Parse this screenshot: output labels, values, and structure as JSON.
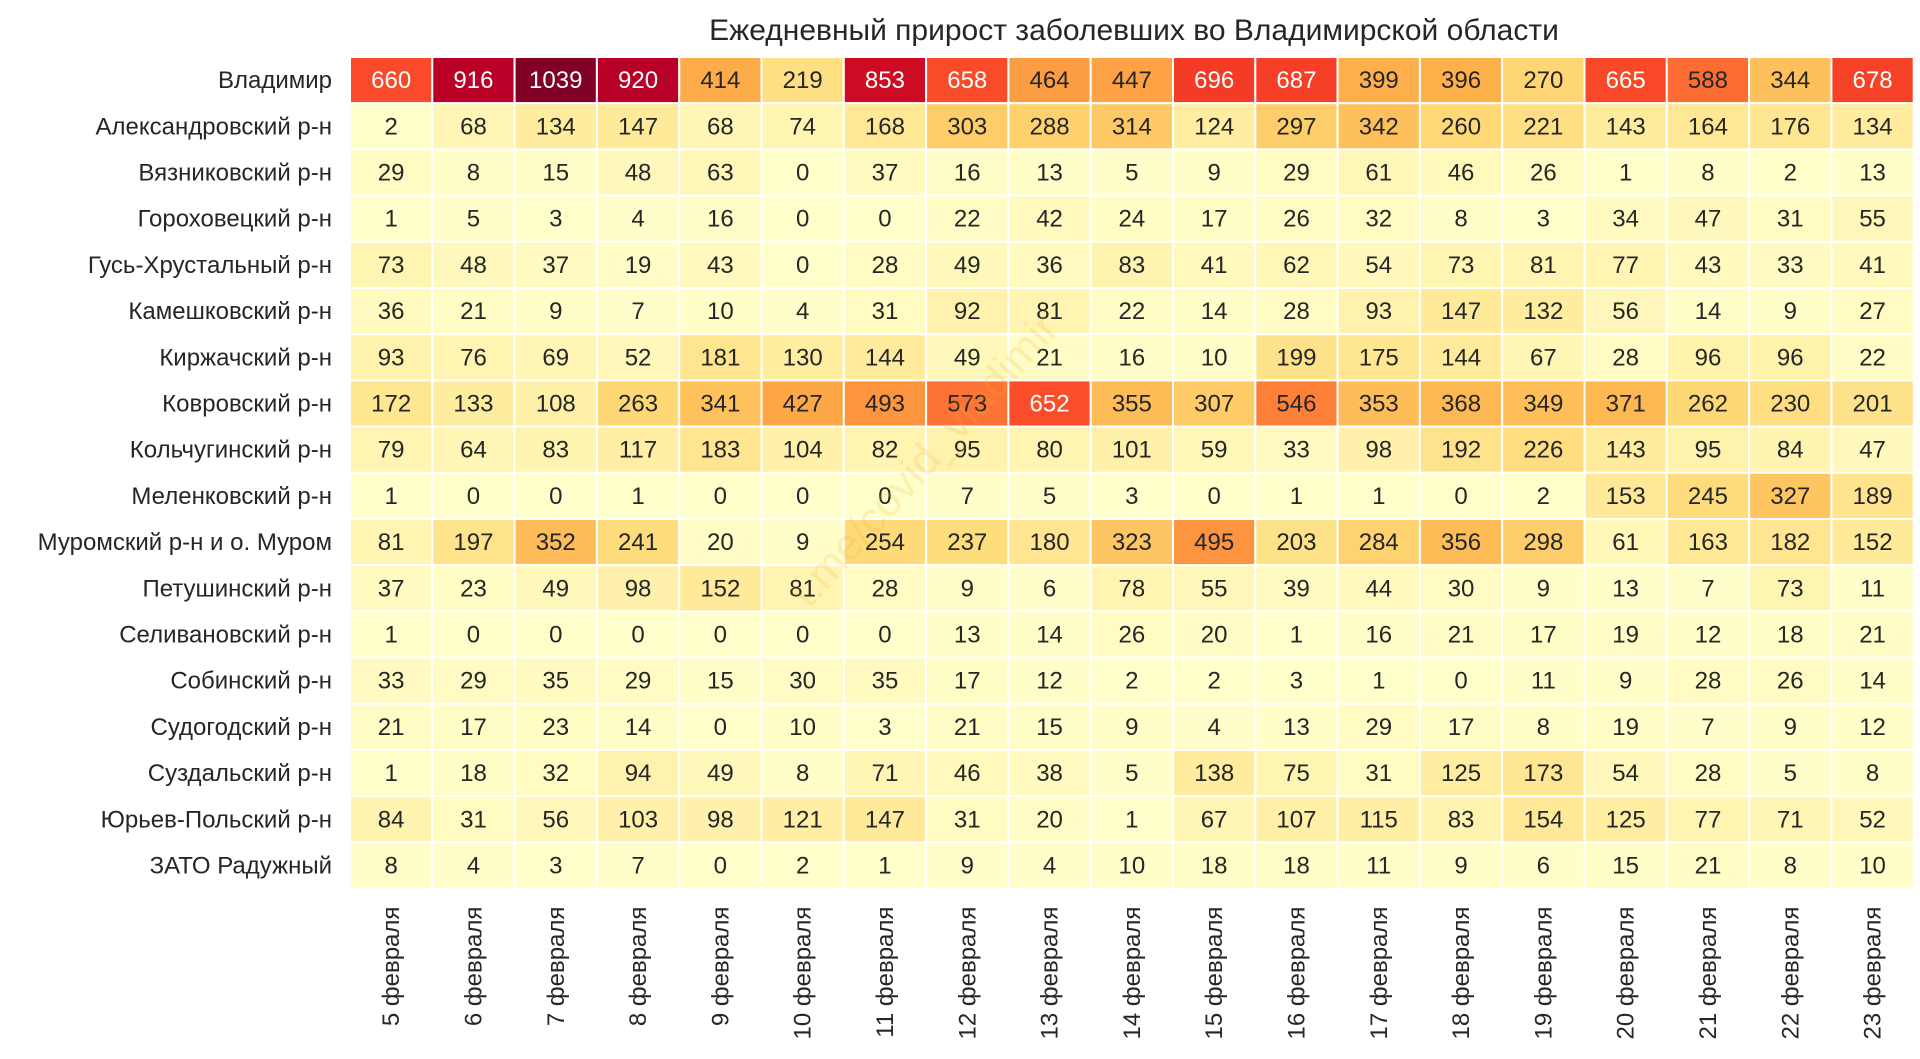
{
  "chart_data": {
    "type": "heatmap",
    "title": "Ежедневный прирост заболевших во Владимирской области",
    "watermark": "t.me/covid_vladimir",
    "colormap": "YlOrRd",
    "x_labels": [
      "5 февраля",
      "6 февраля",
      "7 февраля",
      "8 февраля",
      "9 февраля",
      "10 февраля",
      "11 февраля",
      "12 февраля",
      "13 февраля",
      "14 февраля",
      "15 февраля",
      "16 февраля",
      "17 февраля",
      "18 февраля",
      "19 февраля",
      "20 февраля",
      "21 февраля",
      "22 февраля",
      "23 февраля"
    ],
    "y_labels": [
      "Владимир",
      "Александровский р-н",
      "Вязниковский р-н",
      "Гороховецкий р-н",
      "Гусь-Хрустальный р-н",
      "Камешковский р-н",
      "Киржачский р-н",
      "Ковровский р-н",
      "Кольчугинский р-н",
      "Меленковский р-н",
      "Муромский р-н и о. Муром",
      "Петушинский р-н",
      "Селивановский р-н",
      "Собинский р-н",
      "Судогодский р-н",
      "Суздальский р-н",
      "Юрьев-Польский р-н",
      "ЗАТО Радужный"
    ],
    "values": [
      [
        660,
        916,
        1039,
        920,
        414,
        219,
        853,
        658,
        464,
        447,
        696,
        687,
        399,
        396,
        270,
        665,
        588,
        344,
        678
      ],
      [
        2,
        68,
        134,
        147,
        68,
        74,
        168,
        303,
        288,
        314,
        124,
        297,
        342,
        260,
        221,
        143,
        164,
        176,
        134
      ],
      [
        29,
        8,
        15,
        48,
        63,
        0,
        37,
        16,
        13,
        5,
        9,
        29,
        61,
        46,
        26,
        1,
        8,
        2,
        13
      ],
      [
        1,
        5,
        3,
        4,
        16,
        0,
        0,
        22,
        42,
        24,
        17,
        26,
        32,
        8,
        3,
        34,
        47,
        31,
        55
      ],
      [
        73,
        48,
        37,
        19,
        43,
        0,
        28,
        49,
        36,
        83,
        41,
        62,
        54,
        73,
        81,
        77,
        43,
        33,
        41
      ],
      [
        36,
        21,
        9,
        7,
        10,
        4,
        31,
        92,
        81,
        22,
        14,
        28,
        93,
        147,
        132,
        56,
        14,
        9,
        27
      ],
      [
        93,
        76,
        69,
        52,
        181,
        130,
        144,
        49,
        21,
        16,
        10,
        199,
        175,
        144,
        67,
        28,
        96,
        96,
        22
      ],
      [
        172,
        133,
        108,
        263,
        341,
        427,
        493,
        573,
        652,
        355,
        307,
        546,
        353,
        368,
        349,
        371,
        262,
        230,
        201
      ],
      [
        79,
        64,
        83,
        117,
        183,
        104,
        82,
        95,
        80,
        101,
        59,
        33,
        98,
        192,
        226,
        143,
        95,
        84,
        47
      ],
      [
        1,
        0,
        0,
        1,
        0,
        0,
        0,
        7,
        5,
        3,
        0,
        1,
        1,
        0,
        2,
        153,
        245,
        327,
        189
      ],
      [
        81,
        197,
        352,
        241,
        20,
        9,
        254,
        237,
        180,
        323,
        495,
        203,
        284,
        356,
        298,
        61,
        163,
        182,
        152
      ],
      [
        37,
        23,
        49,
        98,
        152,
        81,
        28,
        9,
        6,
        78,
        55,
        39,
        44,
        30,
        9,
        13,
        7,
        73,
        11
      ],
      [
        1,
        0,
        0,
        0,
        0,
        0,
        0,
        13,
        14,
        26,
        20,
        1,
        16,
        21,
        17,
        19,
        12,
        18,
        21
      ],
      [
        33,
        29,
        35,
        29,
        15,
        30,
        35,
        17,
        12,
        2,
        2,
        3,
        1,
        0,
        11,
        9,
        28,
        26,
        14
      ],
      [
        21,
        17,
        23,
        14,
        0,
        10,
        3,
        21,
        15,
        9,
        4,
        13,
        29,
        17,
        8,
        19,
        7,
        9,
        12
      ],
      [
        1,
        18,
        32,
        94,
        49,
        8,
        71,
        46,
        38,
        5,
        138,
        75,
        31,
        125,
        173,
        54,
        28,
        5,
        8
      ],
      [
        84,
        31,
        56,
        103,
        98,
        121,
        147,
        31,
        20,
        1,
        67,
        107,
        115,
        83,
        154,
        125,
        77,
        71,
        52
      ],
      [
        8,
        4,
        3,
        7,
        0,
        2,
        1,
        9,
        4,
        10,
        18,
        18,
        11,
        9,
        6,
        15,
        21,
        8,
        10
      ]
    ],
    "vmin": 0,
    "vmax": 1039
  }
}
